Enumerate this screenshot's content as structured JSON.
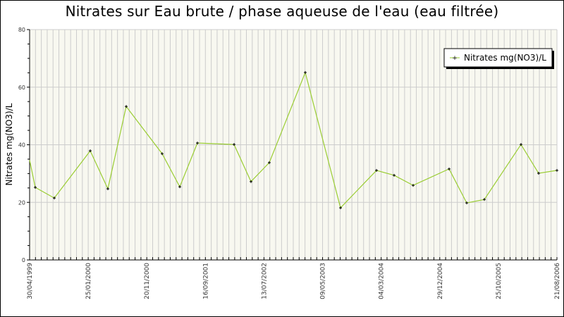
{
  "chart_data": {
    "type": "line",
    "title": "Nitrates sur Eau brute / phase aqueuse de l'eau (eau filtrée)",
    "xlabel": "",
    "ylabel": "Nitrates mg(NO3)/L",
    "ylim": [
      0,
      80
    ],
    "yticks": [
      0,
      20,
      40,
      60,
      80
    ],
    "grid": true,
    "legend_position": "top-right",
    "x_tick_labels": [
      "30/04/1999",
      "25/01/2000",
      "20/11/2000",
      "16/09/2001",
      "13/07/2002",
      "09/05/2003",
      "04/03/2004",
      "29/12/2004",
      "25/10/2005",
      "21/08/2006"
    ],
    "series": [
      {
        "name": "Nitrates mg(NO3)/L",
        "color": "#9acd32",
        "marker_color": "#000000",
        "points": [
          {
            "xpos": 0.0,
            "y": 34.7
          },
          {
            "xpos": 0.0107,
            "y": 25.2
          },
          {
            "xpos": 0.0468,
            "y": 21.5
          },
          {
            "xpos": 0.115,
            "y": 37.9
          },
          {
            "xpos": 0.1484,
            "y": 24.7
          },
          {
            "xpos": 0.1832,
            "y": 53.3
          },
          {
            "xpos": 0.2513,
            "y": 36.9
          },
          {
            "xpos": 0.2848,
            "y": 25.4
          },
          {
            "xpos": 0.3182,
            "y": 40.6
          },
          {
            "xpos": 0.3877,
            "y": 40.1
          },
          {
            "xpos": 0.4198,
            "y": 27.2
          },
          {
            "xpos": 0.4545,
            "y": 33.8
          },
          {
            "xpos": 0.5227,
            "y": 65.1
          },
          {
            "xpos": 0.5896,
            "y": 18.1
          },
          {
            "xpos": 0.6578,
            "y": 31.1
          },
          {
            "xpos": 0.6912,
            "y": 29.4
          },
          {
            "xpos": 0.7273,
            "y": 25.9
          },
          {
            "xpos": 0.7955,
            "y": 31.6
          },
          {
            "xpos": 0.8289,
            "y": 19.8
          },
          {
            "xpos": 0.8623,
            "y": 21.0
          },
          {
            "xpos": 0.9318,
            "y": 40.1
          },
          {
            "xpos": 0.9652,
            "y": 30.1
          },
          {
            "xpos": 1.0,
            "y": 31.1
          }
        ]
      }
    ]
  },
  "colors": {
    "plot_bg": "#f8f8f0",
    "grid": "#cccccc",
    "axis": "#000000"
  }
}
